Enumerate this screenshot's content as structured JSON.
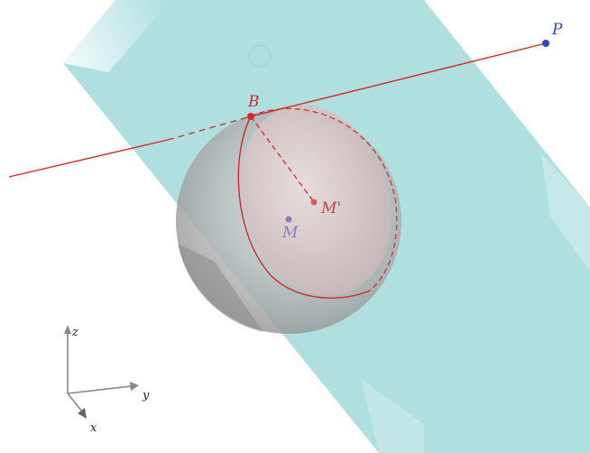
{
  "labels": {
    "point_p": "P",
    "point_b": "B",
    "point_m": "M",
    "point_m_prime": "M'"
  },
  "axes": {
    "x": "x",
    "y": "y",
    "z": "z"
  },
  "colors": {
    "plane": "#9fd8d8",
    "sphere": "#9a9a9a",
    "red": "#d42a2a",
    "blue_point": "#3344cc",
    "m_point": "#8080c0",
    "axis": "#777777"
  }
}
